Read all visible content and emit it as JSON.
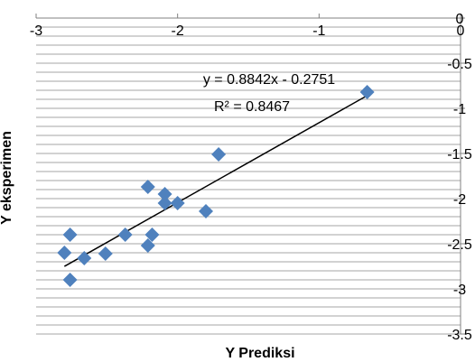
{
  "chart_data": {
    "type": "scatter",
    "title": "",
    "xlabel": "Y Prediksi",
    "ylabel": "Y eksperimen",
    "xlim": [
      -3,
      0
    ],
    "ylim": [
      -3.5,
      0
    ],
    "x_ticks": [
      "-3",
      "-2",
      "-1",
      "0"
    ],
    "y_ticks": [
      "0",
      "-0.5",
      "-1",
      "-1.5",
      "-2",
      "-2.5",
      "-3",
      "-3.5"
    ],
    "x_axis_position": "top",
    "y_axis_position": "right",
    "grid": "horizontal",
    "marker": "diamond",
    "marker_color": "#4F81BD",
    "trendline_color": "#000000",
    "series": [
      {
        "points": [
          {
            "x": -2.8,
            "y": -2.6
          },
          {
            "x": -2.76,
            "y": -2.4
          },
          {
            "x": -2.76,
            "y": -2.9
          },
          {
            "x": -2.66,
            "y": -2.66
          },
          {
            "x": -2.51,
            "y": -2.61
          },
          {
            "x": -2.37,
            "y": -2.4
          },
          {
            "x": -2.21,
            "y": -1.87
          },
          {
            "x": -2.21,
            "y": -2.52
          },
          {
            "x": -2.18,
            "y": -2.4
          },
          {
            "x": -2.09,
            "y": -1.95
          },
          {
            "x": -2.09,
            "y": -2.05
          },
          {
            "x": -2.0,
            "y": -2.05
          },
          {
            "x": -1.8,
            "y": -2.14
          },
          {
            "x": -1.71,
            "y": -1.51
          },
          {
            "x": -0.66,
            "y": -0.82
          }
        ]
      }
    ],
    "trendline": {
      "slope": 0.8842,
      "intercept": -0.2751,
      "x_range": [
        -2.8,
        -0.66
      ]
    },
    "annotations": {
      "equation": "y = 0.8842x - 0.2751",
      "r2": "R² = 0.8467"
    }
  }
}
